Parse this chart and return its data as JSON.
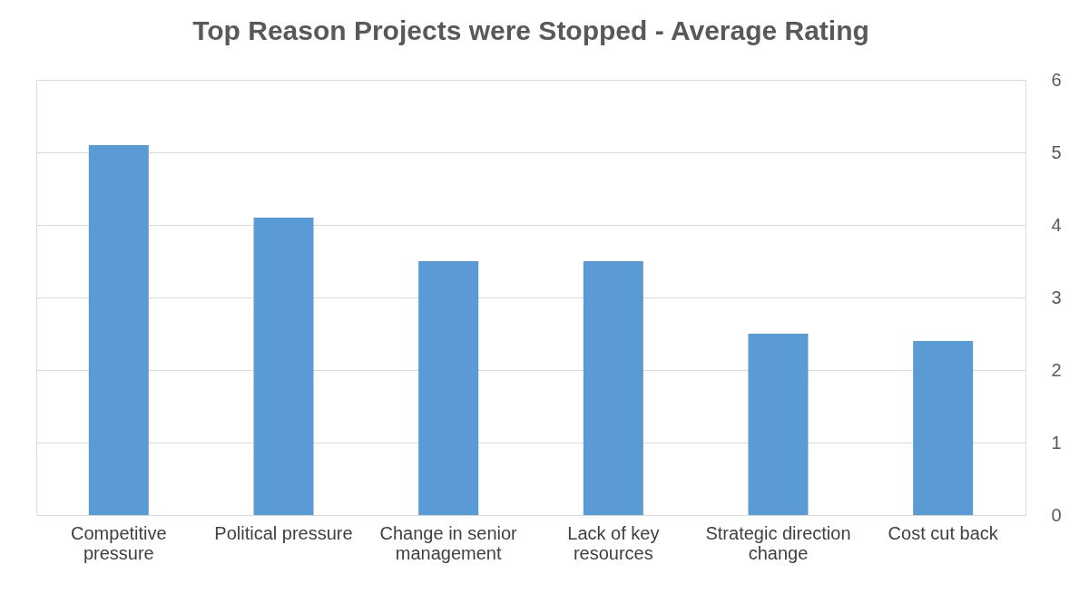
{
  "chart_data": {
    "type": "bar",
    "title": "Top Reason Projects were Stopped - Average Rating",
    "categories": [
      "Competitive pressure",
      "Political pressure",
      "Change in senior management",
      "Lack of key resources",
      "Strategic direction change",
      "Cost cut back"
    ],
    "values": [
      5.1,
      4.1,
      3.5,
      3.5,
      2.5,
      2.4
    ],
    "color": "#5b9bd5",
    "ylim": [
      0,
      6
    ],
    "yticks": [
      0,
      1,
      2,
      3,
      4,
      5,
      6
    ],
    "grid": "y"
  }
}
